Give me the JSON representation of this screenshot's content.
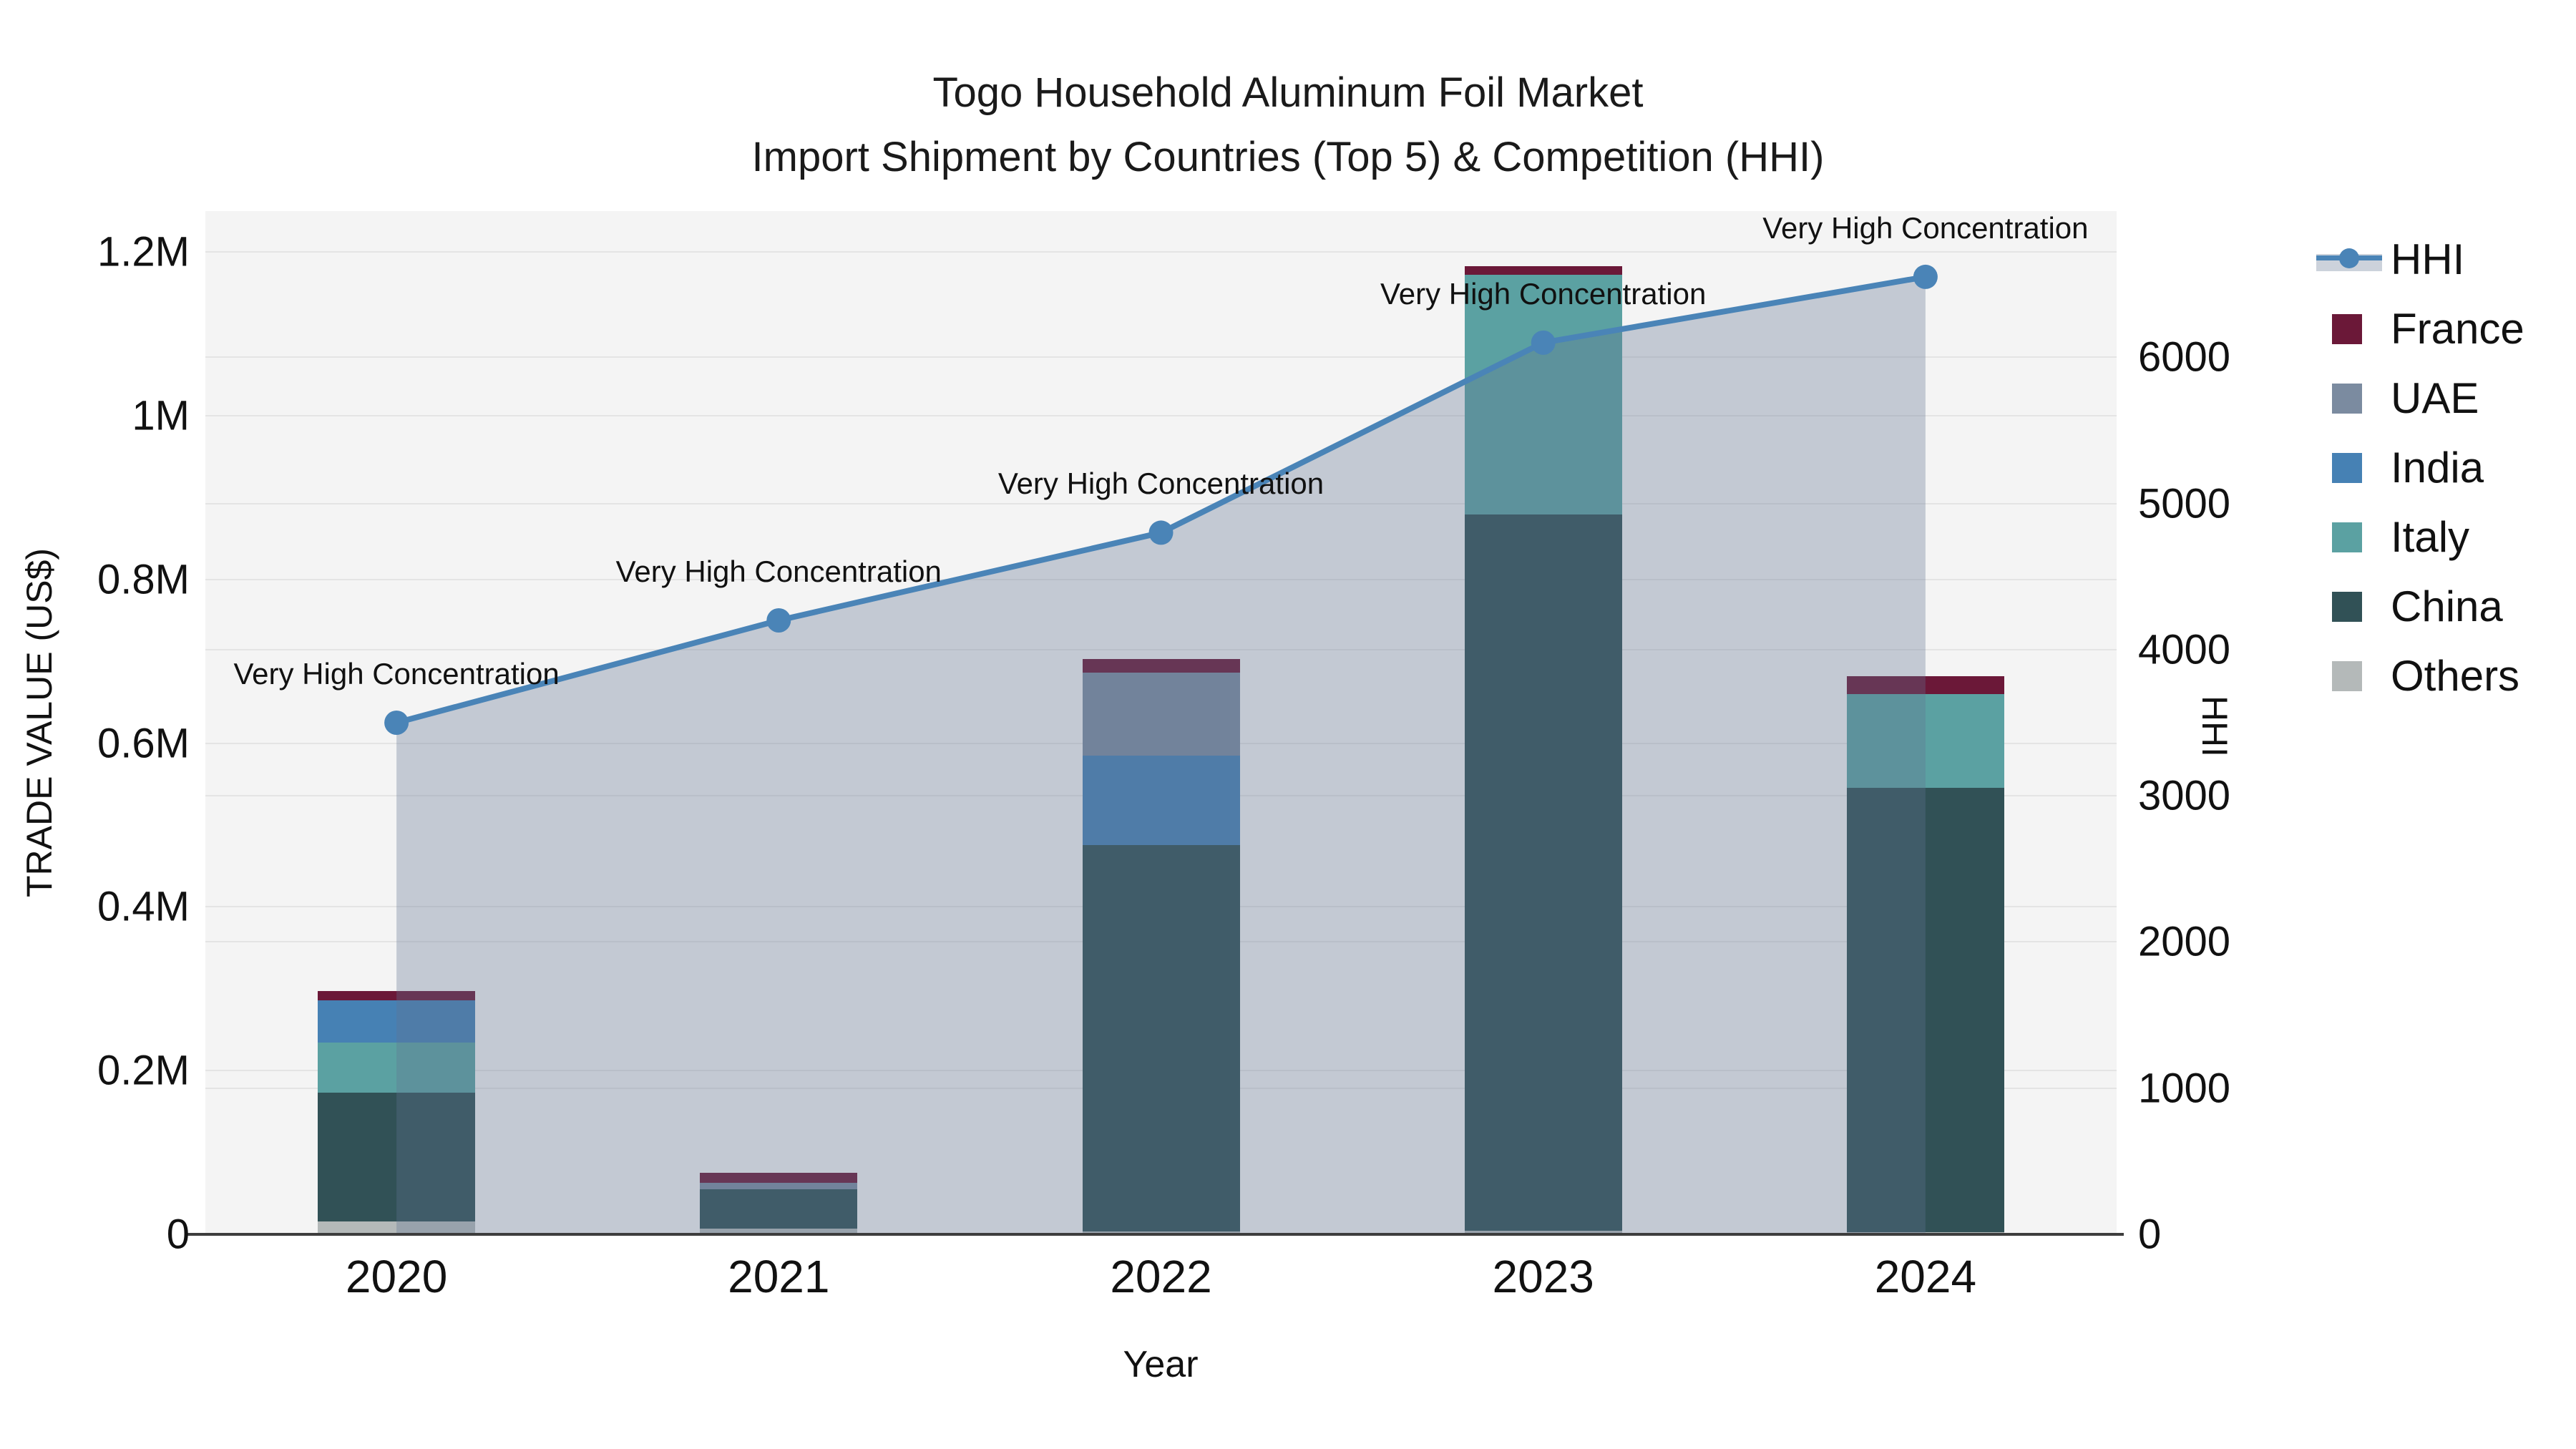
{
  "title": {
    "line1": "Togo Household Aluminum Foil Market",
    "line2": "Import Shipment by Countries (Top 5) & Competition (HHI)"
  },
  "axes": {
    "x_title": "Year",
    "y_left_title": "TRADE VALUE (US$)",
    "y_right_title": "HHI",
    "y_left_max": 1250000,
    "y_right_max": 7000,
    "y_left_ticks": [
      {
        "label": "0",
        "value": 0
      },
      {
        "label": "0.2M",
        "value": 200000
      },
      {
        "label": "0.4M",
        "value": 400000
      },
      {
        "label": "0.6M",
        "value": 600000
      },
      {
        "label": "0.8M",
        "value": 800000
      },
      {
        "label": "1M",
        "value": 1000000
      },
      {
        "label": "1.2M",
        "value": 1200000
      }
    ],
    "y_right_ticks": [
      {
        "label": "0",
        "value": 0
      },
      {
        "label": "1000",
        "value": 1000
      },
      {
        "label": "2000",
        "value": 2000
      },
      {
        "label": "3000",
        "value": 3000
      },
      {
        "label": "4000",
        "value": 4000
      },
      {
        "label": "5000",
        "value": 5000
      },
      {
        "label": "6000",
        "value": 6000
      }
    ]
  },
  "chart_data": {
    "type": "bar+line",
    "categories": [
      "2020",
      "2021",
      "2022",
      "2023",
      "2024"
    ],
    "bar_stack_bottom_to_top": [
      "Others",
      "China",
      "Italy",
      "India",
      "UAE",
      "France"
    ],
    "series": [
      {
        "name": "Others",
        "color": "#b4b9b9",
        "values": [
          16000,
          7000,
          3500,
          4400,
          2600
        ]
      },
      {
        "name": "China",
        "color": "#315156",
        "values": [
          157000,
          48000,
          472000,
          875000,
          543000
        ]
      },
      {
        "name": "Italy",
        "color": "#5ba1a2",
        "values": [
          61000,
          0,
          0,
          293000,
          114000
        ]
      },
      {
        "name": "India",
        "color": "#4681b4",
        "values": [
          51500,
          0,
          109000,
          0,
          0
        ]
      },
      {
        "name": "UAE",
        "color": "#7b8ba0",
        "values": [
          0,
          8000,
          102000,
          0,
          0
        ]
      },
      {
        "name": "France",
        "color": "#6b1838",
        "values": [
          11400,
          12200,
          16600,
          10500,
          21800
        ]
      }
    ],
    "line": {
      "name": "HHI",
      "color": "#4a84b7",
      "area_fill": "rgba(98,116,147,0.33)",
      "values": [
        3500,
        4200,
        4800,
        6100,
        6550
      ]
    },
    "annotations": [
      {
        "text": "Very High Concentration",
        "category": "2020"
      },
      {
        "text": "Very High Concentration",
        "category": "2021"
      },
      {
        "text": "Very High Concentration",
        "category": "2022"
      },
      {
        "text": "Very High Concentration",
        "category": "2023"
      },
      {
        "text": "Very High Concentration",
        "category": "2024"
      }
    ],
    "layout_hints": {
      "grid": true,
      "legend_position": "right",
      "plot_background": "#f4f4f4"
    }
  },
  "legend": {
    "items": [
      {
        "label": "HHI",
        "type": "line",
        "color": "#4a84b7",
        "band": "#ccd2db"
      },
      {
        "label": "France",
        "type": "swatch",
        "color": "#6b1838"
      },
      {
        "label": "UAE",
        "type": "swatch",
        "color": "#7b8ba0"
      },
      {
        "label": "India",
        "type": "swatch",
        "color": "#4681b4"
      },
      {
        "label": "Italy",
        "type": "swatch",
        "color": "#5ba1a2"
      },
      {
        "label": "China",
        "type": "swatch",
        "color": "#315156"
      },
      {
        "label": "Others",
        "type": "swatch",
        "color": "#b4b9b9"
      }
    ]
  }
}
